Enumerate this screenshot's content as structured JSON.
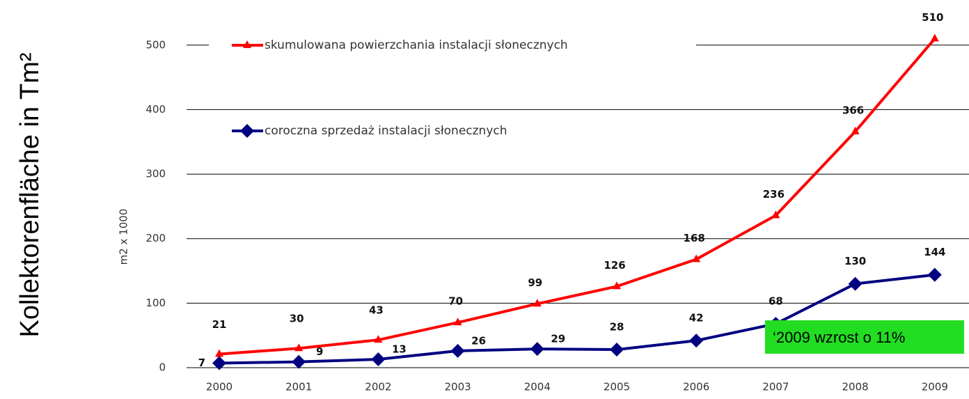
{
  "chart_data": {
    "type": "line",
    "y_axis_label": "m2 x 1000",
    "side_title": "Kollektorenfläche in Tm²",
    "annotation": "‘2009 wzrost o 11%",
    "categories": [
      "2000",
      "2001",
      "2002",
      "2003",
      "2004",
      "2005",
      "2006",
      "2007",
      "2008",
      "2009"
    ],
    "series": [
      {
        "name": "skumulowana powierzchania instalacji słonecznych",
        "color": "#ff0000",
        "marker": "triangle",
        "values": [
          21,
          30,
          43,
          70,
          99,
          126,
          168,
          236,
          366,
          510
        ]
      },
      {
        "name": "coroczna sprzedaż instalacji słonecznych",
        "color": "#000080",
        "marker": "diamond",
        "values": [
          7,
          9,
          13,
          26,
          29,
          28,
          42,
          68,
          130,
          144
        ]
      }
    ],
    "ylim": [
      0,
      530
    ],
    "yticks": [
      0,
      100,
      200,
      300,
      400,
      500
    ],
    "grid": true
  }
}
